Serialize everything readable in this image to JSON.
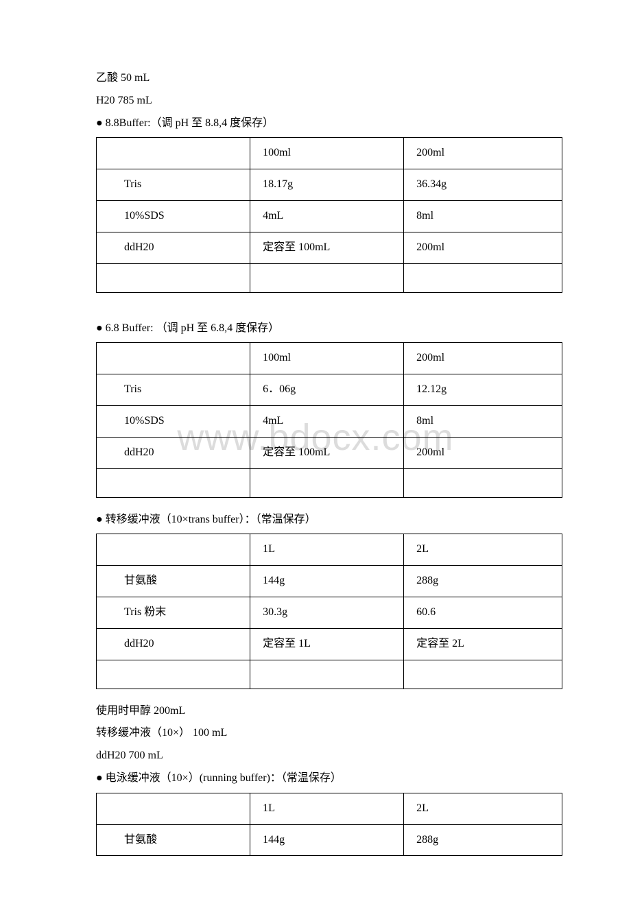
{
  "watermark": "www.bdocx.com",
  "top_lines": [
    "乙酸  50 mL",
    "H20 785 mL"
  ],
  "sections": [
    {
      "heading": "● 8.8Buffer:（调 pH 至 8.8,4 度保存）",
      "table": {
        "headers": [
          "",
          "100ml",
          "200ml"
        ],
        "rows": [
          [
            "Tris",
            "18.17g",
            "36.34g"
          ],
          [
            "10%SDS",
            "4mL",
            "8ml"
          ],
          [
            "ddH20",
            "定容至 100mL",
            "200ml"
          ],
          [
            "",
            "",
            ""
          ]
        ]
      },
      "gap_after": true
    },
    {
      "heading": "● 6.8 Buffer: （调 pH 至 6.8,4 度保存）",
      "table": {
        "headers": [
          "",
          "100ml",
          "200ml"
        ],
        "rows": [
          [
            "Tris",
            "6．06g",
            "12.12g"
          ],
          [
            "10%SDS",
            "4mL",
            "8ml"
          ],
          [
            "ddH20",
            "定容至 100mL",
            "200ml"
          ],
          [
            "",
            "",
            ""
          ]
        ]
      }
    },
    {
      "heading": "● 转移缓冲液（10×trans buffer）：（常温保存）",
      "table": {
        "headers": [
          "",
          "1L",
          "2L"
        ],
        "rows": [
          [
            "甘氨酸",
            "144g",
            "288g"
          ],
          [
            "Tris 粉末",
            "30.3g",
            "60.6"
          ],
          [
            "ddH20",
            "定容至 1L",
            "定容至 2L"
          ],
          [
            "",
            "",
            ""
          ]
        ]
      },
      "post_lines": [
        "使用时甲醇 200mL",
        "转移缓冲液（10×）   100 mL",
        "ddH20   700 mL"
      ]
    },
    {
      "heading": "● 电泳缓冲液（10×）(running buffer)：（常温保存）",
      "table": {
        "headers": [
          "",
          "1L",
          "2L"
        ],
        "rows": [
          [
            "甘氨酸",
            "144g",
            "288g"
          ]
        ]
      },
      "last": true
    }
  ]
}
